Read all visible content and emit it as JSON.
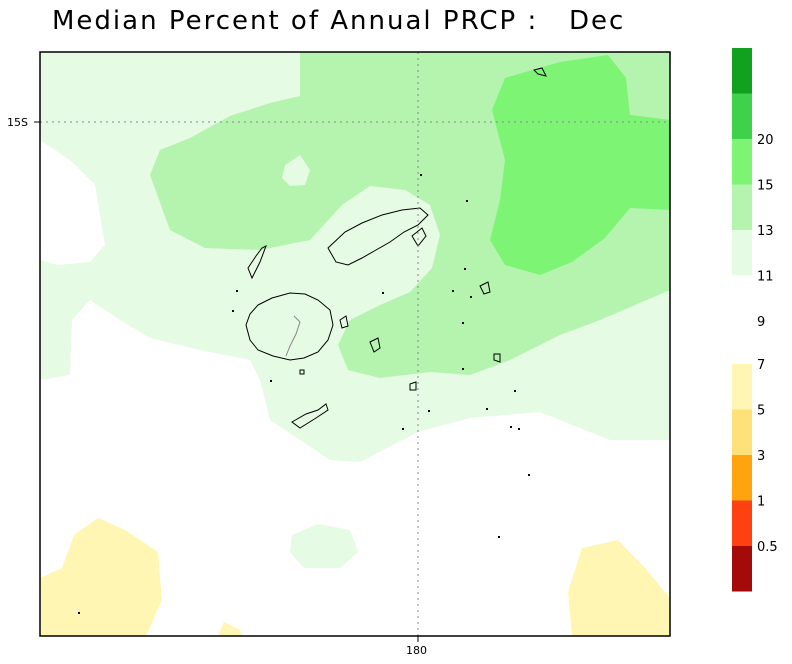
{
  "title": "Median Percent of Annual PRCP :   Dec",
  "axes": {
    "lat_label": "15S",
    "lon_label": "180"
  },
  "legend": {
    "upper": [
      {
        "color": "#ffffff",
        "label": "9"
      },
      {
        "color": "#e6fbe3",
        "label": "11"
      },
      {
        "color": "#b4f4ae",
        "label": "13"
      },
      {
        "color": "#7df474",
        "label": "15"
      },
      {
        "color": "#3fd14a",
        "label": "20"
      },
      {
        "color": "#11a11e",
        "label": ""
      }
    ],
    "lower": [
      {
        "color": "#fff6b4",
        "label": "7"
      },
      {
        "color": "#ffe17a",
        "label": "5"
      },
      {
        "color": "#ffa30f",
        "label": "3"
      },
      {
        "color": "#ff4010",
        "label": "1"
      },
      {
        "color": "#a50a0a",
        "label": "0.5"
      }
    ]
  },
  "colors": {
    "white": "#ffffff",
    "very_light_green": "#e6fbe3",
    "light_green": "#b4f4ae",
    "medium_green": "#7df474",
    "pale_yellow": "#fff6b4",
    "coast": "#000000",
    "grid": "#888888"
  }
}
